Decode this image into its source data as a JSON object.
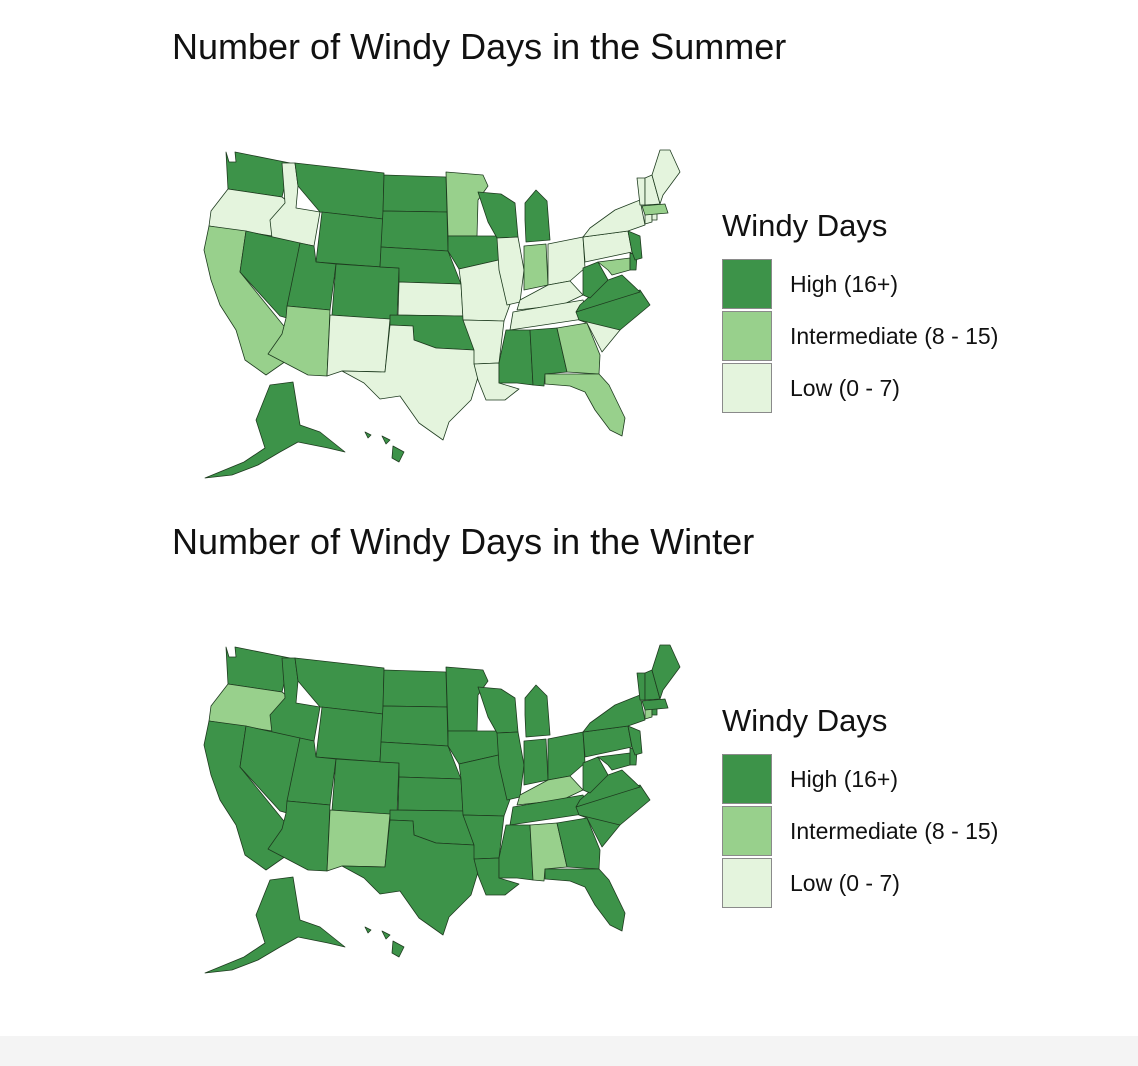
{
  "colors": {
    "high": "#3d9349",
    "intermediate": "#98d08c",
    "low": "#e4f4dd",
    "border": "#1e3b1f"
  },
  "maps": [
    {
      "id": "summer",
      "title": "Number of Windy Days in the Summer",
      "legend": {
        "title": "Windy Days",
        "items": [
          {
            "label": "High (16+)",
            "level": "high"
          },
          {
            "label": "Intermediate (8 - 15)",
            "level": "intermediate"
          },
          {
            "label": "Low (0 - 7)",
            "level": "low"
          }
        ]
      },
      "states": {
        "WA": "high",
        "OR": "low",
        "CA": "intermediate",
        "ID": "low",
        "NV": "high",
        "MT": "high",
        "WY": "high",
        "UT": "high",
        "AZ": "intermediate",
        "CO": "high",
        "NM": "low",
        "ND": "high",
        "SD": "high",
        "NE": "high",
        "KS": "low",
        "OK": "high",
        "TX": "low",
        "MN": "intermediate",
        "IA": "high",
        "MO": "low",
        "AR": "low",
        "LA": "low",
        "WI": "high",
        "IL": "low",
        "MI": "high",
        "IN": "intermediate",
        "OH": "low",
        "KY": "low",
        "TN": "low",
        "MS": "high",
        "AL": "high",
        "GA": "intermediate",
        "FL": "intermediate",
        "SC": "low",
        "NC": "high",
        "VA": "high",
        "WV": "high",
        "MD": "intermediate",
        "DE": "high",
        "PA": "low",
        "NJ": "high",
        "NY": "low",
        "CT": "low",
        "RI": "low",
        "MA": "intermediate",
        "VT": "low",
        "NH": "low",
        "ME": "low",
        "AK": "high",
        "HI": "high"
      }
    },
    {
      "id": "winter",
      "title": "Number of Windy Days in the Winter",
      "legend": {
        "title": "Windy Days",
        "items": [
          {
            "label": "High (16+)",
            "level": "high"
          },
          {
            "label": "Intermediate (8 - 15)",
            "level": "intermediate"
          },
          {
            "label": "Low (0 - 7)",
            "level": "low"
          }
        ]
      },
      "states": {
        "WA": "high",
        "OR": "intermediate",
        "CA": "high",
        "ID": "high",
        "NV": "high",
        "MT": "high",
        "WY": "high",
        "UT": "high",
        "AZ": "high",
        "CO": "high",
        "NM": "intermediate",
        "ND": "high",
        "SD": "high",
        "NE": "high",
        "KS": "high",
        "OK": "high",
        "TX": "high",
        "MN": "high",
        "IA": "high",
        "MO": "high",
        "AR": "high",
        "LA": "high",
        "WI": "high",
        "IL": "high",
        "MI": "high",
        "IN": "high",
        "OH": "high",
        "KY": "intermediate",
        "TN": "high",
        "MS": "high",
        "AL": "intermediate",
        "GA": "high",
        "FL": "high",
        "SC": "high",
        "NC": "high",
        "VA": "high",
        "WV": "high",
        "MD": "high",
        "DE": "high",
        "PA": "high",
        "NJ": "high",
        "NY": "high",
        "CT": "intermediate",
        "RI": "high",
        "MA": "high",
        "VT": "high",
        "NH": "high",
        "ME": "high",
        "AK": "high",
        "HI": "high"
      }
    }
  ]
}
